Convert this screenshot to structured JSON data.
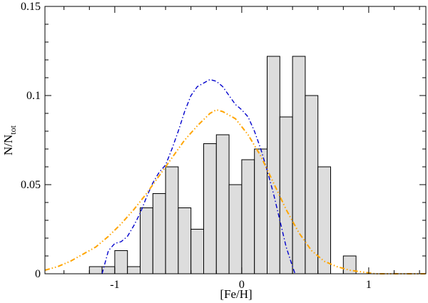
{
  "chart_data": {
    "type": "bar",
    "title": "",
    "xlabel": "[Fe/H]",
    "ylabel_main": "N/N",
    "ylabel_sub": "tot",
    "xlim": [
      -1.55,
      1.45
    ],
    "ylim": [
      0,
      0.15
    ],
    "x_ticks": [
      -1,
      0,
      1
    ],
    "x_tick_labels": [
      "-1",
      "0",
      "1"
    ],
    "x_minor_step": 0.2,
    "y_ticks": [
      0,
      0.05,
      0.1,
      0.15
    ],
    "y_tick_labels": [
      "0",
      "0.05",
      "0.1",
      "0.15"
    ],
    "y_minor_step": 0.01,
    "grid": false,
    "bin_width": 0.1,
    "histogram": {
      "bin_left_edges": [
        -1.2,
        -1.1,
        -1.0,
        -0.9,
        -0.8,
        -0.7,
        -0.6,
        -0.5,
        -0.4,
        -0.3,
        -0.2,
        -0.1,
        0.0,
        0.1,
        0.2,
        0.3,
        0.4,
        0.5,
        0.6
      ],
      "values": [
        0.004,
        0.004,
        0.013,
        0.004,
        0.037,
        0.045,
        0.06,
        0.037,
        0.025,
        0.073,
        0.078,
        0.05,
        0.064,
        0.07,
        0.122,
        0.088,
        0.122,
        0.1,
        0.06
      ],
      "fill": "#dddddd",
      "stroke": "#000000"
    },
    "extra_bar": {
      "left_edge": 0.8,
      "value": 0.01
    },
    "series": [
      {
        "style": "dash-dot",
        "color": "#0000cc",
        "x": [
          -1.1,
          -1.05,
          -1.0,
          -0.95,
          -0.9,
          -0.85,
          -0.8,
          -0.75,
          -0.7,
          -0.65,
          -0.6,
          -0.55,
          -0.5,
          -0.45,
          -0.4,
          -0.35,
          -0.3,
          -0.25,
          -0.2,
          -0.15,
          -0.1,
          -0.05,
          0.0,
          0.05,
          0.1,
          0.15,
          0.2,
          0.25,
          0.3,
          0.35,
          0.4,
          0.42
        ],
        "y": [
          0.0,
          0.013,
          0.017,
          0.018,
          0.021,
          0.027,
          0.034,
          0.043,
          0.051,
          0.057,
          0.061,
          0.07,
          0.08,
          0.091,
          0.1,
          0.105,
          0.107,
          0.109,
          0.108,
          0.105,
          0.1,
          0.095,
          0.092,
          0.088,
          0.08,
          0.07,
          0.058,
          0.045,
          0.03,
          0.015,
          0.004,
          0.0
        ]
      },
      {
        "style": "dash-dot-dot",
        "color": "#ffa500",
        "x": [
          -1.55,
          -1.45,
          -1.35,
          -1.25,
          -1.15,
          -1.05,
          -0.95,
          -0.85,
          -0.75,
          -0.65,
          -0.55,
          -0.45,
          -0.35,
          -0.25,
          -0.2,
          -0.15,
          -0.05,
          0.05,
          0.15,
          0.25,
          0.35,
          0.45,
          0.55,
          0.65,
          0.75,
          0.85,
          0.95,
          1.05,
          1.15,
          1.25,
          1.35,
          1.45
        ],
        "y": [
          0.002,
          0.004,
          0.007,
          0.011,
          0.015,
          0.021,
          0.028,
          0.036,
          0.045,
          0.055,
          0.065,
          0.075,
          0.083,
          0.09,
          0.092,
          0.091,
          0.087,
          0.078,
          0.066,
          0.051,
          0.036,
          0.023,
          0.013,
          0.007,
          0.004,
          0.002,
          0.001,
          0.0,
          0.0,
          0.0,
          0.0,
          0.0
        ]
      }
    ]
  }
}
